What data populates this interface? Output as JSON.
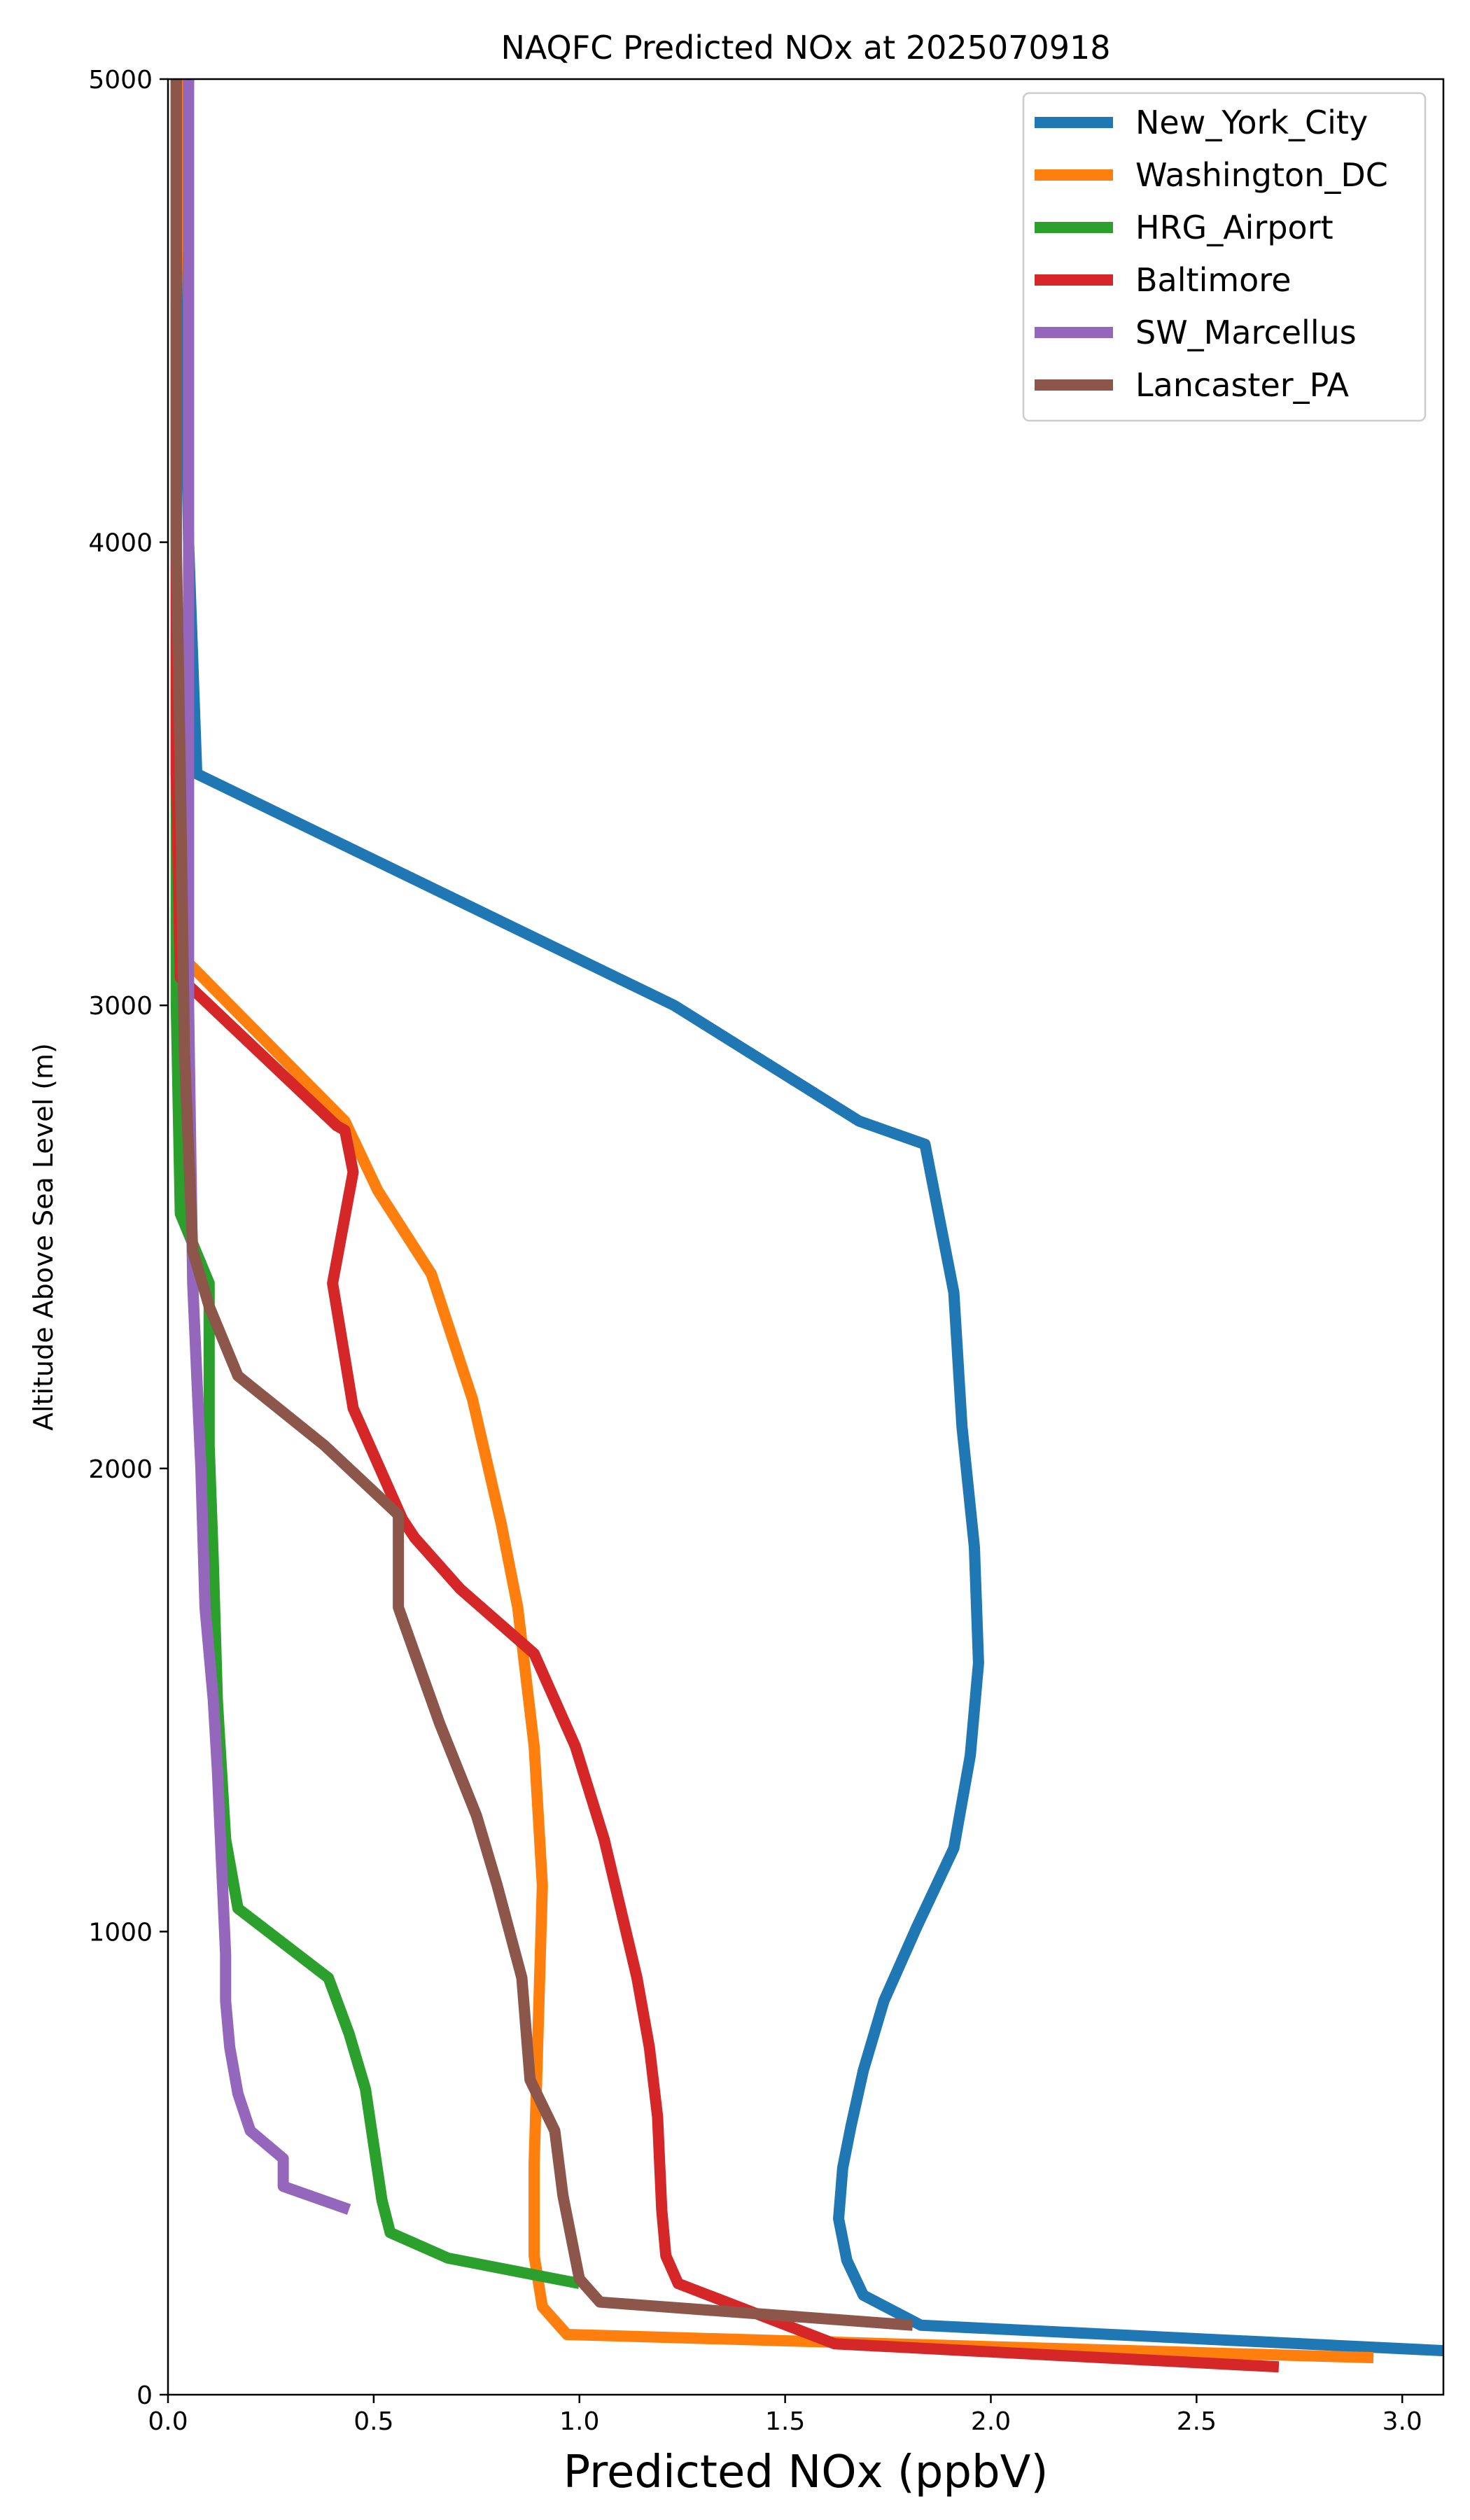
{
  "chart_data": {
    "type": "line",
    "title": "NAQFC Predicted NOx at 2025070918",
    "xlabel": "Predicted NOx (ppbV)",
    "ylabel": "Altitude Above Sea Level (m)",
    "xlim": [
      0,
      3.1
    ],
    "ylim": [
      0,
      5000
    ],
    "xticks": [
      0.0,
      0.5,
      1.0,
      1.5,
      2.0,
      2.5,
      3.0
    ],
    "xtick_labels": [
      "0.0",
      "0.5",
      "1.0",
      "1.5",
      "2.0",
      "2.5",
      "3.0"
    ],
    "yticks": [
      0,
      1000,
      2000,
      3000,
      4000,
      5000
    ],
    "ytick_labels": [
      "0",
      "1000",
      "2000",
      "3000",
      "4000",
      "5000"
    ],
    "grid": false,
    "legend_position": "top-right",
    "series": [
      {
        "name": "New_York_City",
        "color": "#1f77b4",
        "x": [
          3.1,
          1.83,
          1.69,
          1.65,
          1.63,
          1.64,
          1.66,
          1.69,
          1.74,
          1.82,
          1.91,
          1.95,
          1.97,
          1.96,
          1.93,
          1.91,
          1.84,
          1.68,
          1.23,
          0.07,
          0.05,
          0.04,
          0.05,
          0.05,
          0.05
        ],
        "y": [
          95,
          150,
          215,
          290,
          380,
          490,
          580,
          700,
          850,
          1010,
          1180,
          1380,
          1580,
          1830,
          2090,
          2380,
          2700,
          2750,
          3000,
          3500,
          4000,
          4500,
          5000,
          5000,
          5000
        ]
      },
      {
        "name": "Washington_DC",
        "color": "#ff7f0e",
        "x": [
          2.93,
          0.97,
          0.91,
          0.89,
          0.89,
          0.9,
          0.91,
          0.89,
          0.85,
          0.81,
          0.74,
          0.64,
          0.51,
          0.43,
          0.04,
          0.02,
          0.02,
          0.02,
          0.03
        ],
        "y": [
          80,
          130,
          190,
          300,
          500,
          800,
          1100,
          1400,
          1700,
          1880,
          2150,
          2420,
          2600,
          2750,
          3100,
          3500,
          4000,
          4500,
          5000
        ]
      },
      {
        "name": "HRG_Airport",
        "color": "#2ca02c",
        "x": [
          1.0,
          0.68,
          0.54,
          0.52,
          0.48,
          0.44,
          0.39,
          0.17,
          0.14,
          0.12,
          0.11,
          0.1,
          0.1,
          0.1,
          0.03,
          0.02,
          0.02,
          0.02,
          0.02
        ],
        "y": [
          240,
          295,
          350,
          420,
          660,
          780,
          900,
          1050,
          1200,
          1500,
          1800,
          2050,
          2300,
          2400,
          2550,
          3000,
          3500,
          4000,
          5000
        ]
      },
      {
        "name": "Baltimore",
        "color": "#d62728",
        "x": [
          2.7,
          1.62,
          1.24,
          1.21,
          1.2,
          1.19,
          1.17,
          1.14,
          1.06,
          0.99,
          0.89,
          0.71,
          0.6,
          0.57,
          0.45,
          0.4,
          0.45,
          0.43,
          0.41,
          0.03,
          0.02,
          0.02,
          0.02,
          0.02
        ],
        "y": [
          60,
          110,
          240,
          300,
          400,
          600,
          750,
          900,
          1200,
          1400,
          1600,
          1740,
          1850,
          1890,
          2130,
          2400,
          2640,
          2730,
          2740,
          3060,
          3500,
          4000,
          4500,
          5000
        ]
      },
      {
        "name": "SW_Marcellus",
        "color": "#9467bd",
        "x": [
          0.44,
          0.28,
          0.28,
          0.2,
          0.17,
          0.15,
          0.14,
          0.14,
          0.13,
          0.12,
          0.11,
          0.09,
          0.08,
          0.07,
          0.06,
          0.05,
          0.05,
          0.05,
          0.05
        ],
        "y": [
          400,
          450,
          510,
          570,
          650,
          750,
          850,
          950,
          1150,
          1350,
          1500,
          1700,
          2000,
          2200,
          2400,
          3000,
          3500,
          4000,
          5000
        ]
      },
      {
        "name": "Lancaster_PA",
        "color": "#8c564b",
        "x": [
          1.81,
          1.05,
          1.0,
          0.96,
          0.94,
          0.88,
          0.86,
          0.8,
          0.75,
          0.66,
          0.56,
          0.56,
          0.56,
          0.38,
          0.17,
          0.1,
          0.06,
          0.04,
          0.03,
          0.02,
          0.02
        ],
        "y": [
          150,
          200,
          250,
          430,
          570,
          680,
          900,
          1100,
          1250,
          1450,
          1700,
          1780,
          1900,
          2050,
          2200,
          2350,
          2470,
          2900,
          3500,
          4000,
          5000
        ]
      }
    ]
  }
}
